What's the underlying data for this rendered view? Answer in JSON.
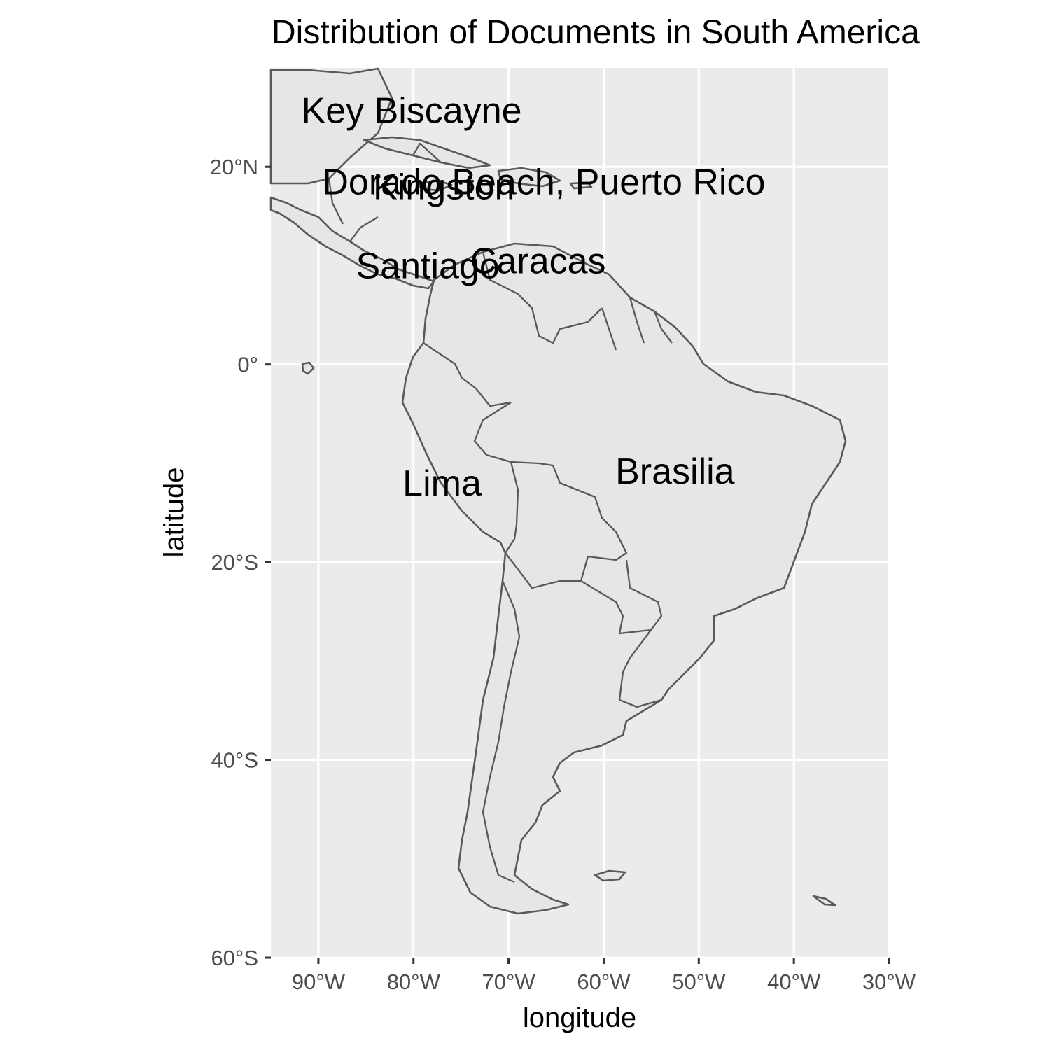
{
  "chart_data": {
    "type": "map",
    "title": "Distribution of Documents in South America",
    "xlabel": "longitude",
    "ylabel": "latitude",
    "xlim": [
      -95,
      -30
    ],
    "ylim": [
      -60,
      30
    ],
    "x_ticks": [
      {
        "value": -90,
        "label": "90°W"
      },
      {
        "value": -80,
        "label": "80°W"
      },
      {
        "value": -70,
        "label": "70°W"
      },
      {
        "value": -60,
        "label": "60°W"
      },
      {
        "value": -50,
        "label": "50°W"
      },
      {
        "value": -40,
        "label": "40°W"
      },
      {
        "value": -30,
        "label": "30°W"
      }
    ],
    "y_ticks": [
      {
        "value": 20,
        "label": "20°N"
      },
      {
        "value": 0,
        "label": "0°"
      },
      {
        "value": -20,
        "label": "20°S"
      },
      {
        "value": -40,
        "label": "40°S"
      },
      {
        "value": -60,
        "label": "60°S"
      }
    ],
    "grid": true,
    "labels": [
      {
        "text": "Key Biscayne",
        "lon": -80.2,
        "lat": 25.7
      },
      {
        "text": "Dorado Beach, Puerto Rico",
        "lon": -66.3,
        "lat": 18.5
      },
      {
        "text": "Kingston",
        "lon": -76.8,
        "lat": 18.0
      },
      {
        "text": "Santiago",
        "lon": -78.5,
        "lat": 10.0
      },
      {
        "text": "Caracas",
        "lon": -66.9,
        "lat": 10.5
      },
      {
        "text": "Lima",
        "lon": -77.0,
        "lat": -12.0
      },
      {
        "text": "Brasilia",
        "lon": -52.5,
        "lat": -10.8
      }
    ],
    "colors": {
      "panel_background": "#ebebeb",
      "land_fill": "#e6e6e6",
      "country_outline": "#595959",
      "gridline": "#ffffff"
    }
  }
}
